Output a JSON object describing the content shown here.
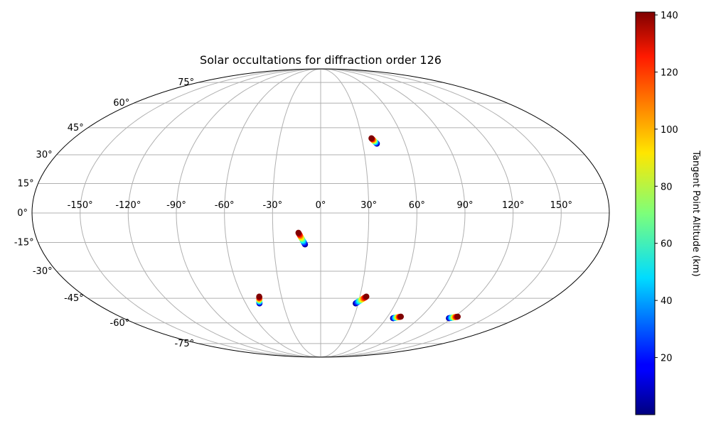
{
  "chart_data": {
    "type": "scatter",
    "projection": "mollweide",
    "title": "Solar occultations for diffraction order 126",
    "x_tick_labels": [
      "-150°",
      "-120°",
      "-90°",
      "-60°",
      "-30°",
      "0°",
      "30°",
      "60°",
      "90°",
      "120°",
      "150°"
    ],
    "y_tick_labels": [
      "-75°",
      "-60°",
      "-45°",
      "-30°",
      "-15°",
      "0°",
      "15°",
      "30°",
      "45°",
      "60°",
      "75°"
    ],
    "x_ticks": [
      -150,
      -120,
      -90,
      -60,
      -30,
      0,
      30,
      60,
      90,
      120,
      150
    ],
    "y_ticks": [
      -75,
      -60,
      -45,
      -30,
      -15,
      0,
      15,
      30,
      45,
      60,
      75
    ],
    "xlim": [
      -180,
      180
    ],
    "ylim": [
      -90,
      90
    ],
    "grid": true,
    "colorbar": {
      "label": "Tangent Point Altitude (km)",
      "colormap": "jet",
      "range": [
        0,
        141
      ],
      "ticks": [
        20,
        40,
        60,
        80,
        100,
        120,
        140
      ]
    },
    "tracks": [
      {
        "lon_start": 40,
        "lat_start": 36,
        "lon_end": 37,
        "lat_end": 39,
        "alt_start": 0,
        "alt_end": 141
      },
      {
        "lon_start": -10,
        "lat_start": -16,
        "lon_end": -14,
        "lat_end": -10,
        "alt_start": 0,
        "alt_end": 141
      },
      {
        "lon_start": -49,
        "lat_start": -48,
        "lon_end": -47,
        "lat_end": -44,
        "alt_start": 0,
        "alt_end": 141
      },
      {
        "lon_start": 28,
        "lat_start": -48,
        "lon_end": 35,
        "lat_end": -44,
        "alt_start": 0,
        "alt_end": 141
      },
      {
        "lon_start": 66,
        "lat_start": -57,
        "lon_end": 72,
        "lat_end": -56,
        "alt_start": 0,
        "alt_end": 141
      },
      {
        "lon_start": 117,
        "lat_start": -57,
        "lon_end": 123,
        "lat_end": -56,
        "alt_start": 0,
        "alt_end": 141
      }
    ]
  }
}
